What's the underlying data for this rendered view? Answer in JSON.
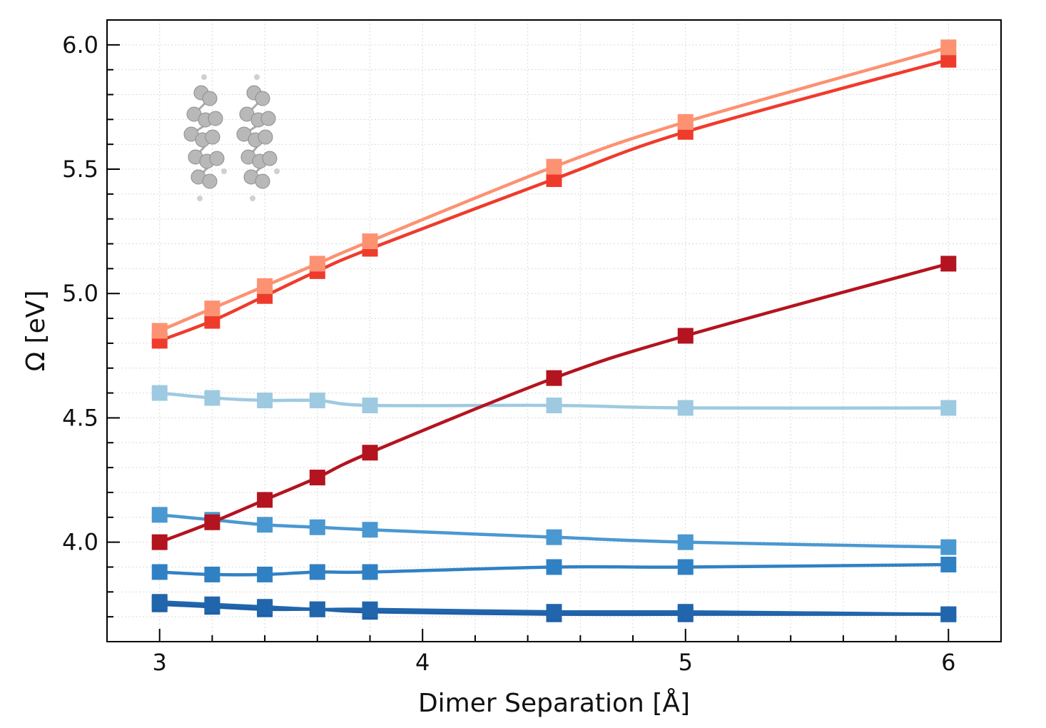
{
  "chart_data": {
    "type": "line",
    "title": "",
    "xlabel": "Dimer Separation [Å]",
    "ylabel": "Ω [eV]",
    "xlim": [
      2.8,
      6.2
    ],
    "ylim": [
      3.6,
      6.1
    ],
    "xticks": [
      "3",
      "4",
      "5",
      "6"
    ],
    "yticks": [
      "4.0",
      "4.5",
      "5.0",
      "5.5",
      "6.0"
    ],
    "grid": true,
    "marker": "square",
    "x": [
      3.0,
      3.2,
      3.4,
      3.6,
      3.8,
      4.5,
      5.0,
      6.0
    ],
    "series": [
      {
        "color": "#fc9272",
        "values": [
          4.85,
          4.94,
          5.03,
          5.12,
          5.21,
          5.51,
          5.69,
          5.99
        ]
      },
      {
        "color": "#ef3b2c",
        "values": [
          4.81,
          4.89,
          4.99,
          5.09,
          5.18,
          5.46,
          5.65,
          5.94
        ]
      },
      {
        "color": "#b3141f",
        "values": [
          4.0,
          4.08,
          4.17,
          4.26,
          4.36,
          4.66,
          4.83,
          5.12
        ]
      },
      {
        "color": "#9ecae1",
        "values": [
          4.6,
          4.58,
          4.57,
          4.57,
          4.55,
          4.55,
          4.54,
          4.54
        ]
      },
      {
        "color": "#4a98d1",
        "values": [
          4.11,
          4.09,
          4.07,
          4.06,
          4.05,
          4.02,
          4.0,
          3.98
        ]
      },
      {
        "color": "#3081c4",
        "values": [
          3.88,
          3.87,
          3.87,
          3.88,
          3.88,
          3.9,
          3.9,
          3.91
        ]
      },
      {
        "color": "#2166ac",
        "values": [
          3.76,
          3.75,
          3.74,
          3.73,
          3.73,
          3.72,
          3.72,
          3.71
        ]
      },
      {
        "color": "#1f5fa8",
        "values": [
          3.75,
          3.74,
          3.73,
          3.73,
          3.72,
          3.71,
          3.71,
          3.71
        ]
      }
    ],
    "inset": {
      "description_icon": "molecular-dimer-image",
      "position": "top-left"
    }
  },
  "colors": {
    "background": "#ffffff",
    "axis": "#000000",
    "grid": "#dddddd"
  }
}
